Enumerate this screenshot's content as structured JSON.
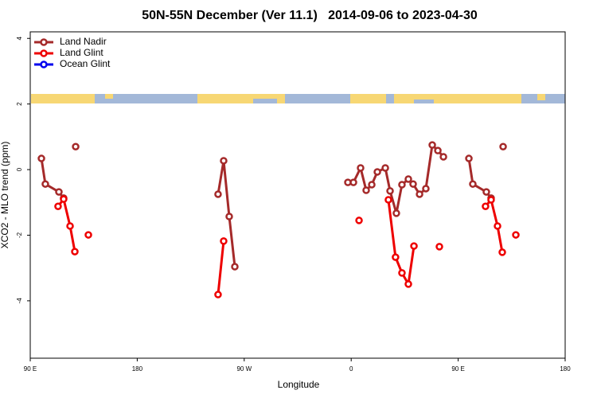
{
  "chart_data": {
    "type": "line",
    "title": "50N-55N December (Ver 11.1)   2014-09-06 to 2023-04-30",
    "xlabel": "Longitude",
    "ylabel": "XCO2 - MLO trend (ppm)",
    "xlim": [
      90,
      540
    ],
    "ylim": [
      -5.75,
      4.2
    ],
    "xticks": [
      {
        "value": 90,
        "label": "90 E"
      },
      {
        "value": 180,
        "label": "180"
      },
      {
        "value": 270,
        "label": "90 W"
      },
      {
        "value": 360,
        "label": "0"
      },
      {
        "value": 450,
        "label": "90 E"
      },
      {
        "value": 540,
        "label": "180"
      }
    ],
    "yticks": [
      -4,
      -2,
      0,
      2,
      4
    ],
    "legend": "upper left",
    "series": [
      {
        "name": "Land Nadir",
        "color": "#a52a2a",
        "x": [
          99.4,
          102.7,
          114.1,
          118.1,
          null,
          128.2,
          null,
          248.0,
          252.7,
          257.4,
          262.1,
          null,
          357.2,
          361.9,
          367.9,
          372.6,
          377.3,
          382.0,
          388.7,
          392.7,
          398.0,
          402.7,
          408.1,
          412.1,
          417.5,
          422.8,
          428.2,
          432.9,
          437.6,
          null,
          459.0,
          462.3,
          473.7,
          477.7,
          null,
          487.8
        ],
        "values": [
          0.34,
          -0.44,
          -0.68,
          -0.87,
          null,
          0.7,
          null,
          -0.75,
          0.27,
          -1.43,
          -2.96,
          null,
          -0.39,
          -0.39,
          0.05,
          -0.63,
          -0.46,
          -0.07,
          0.05,
          -0.65,
          -1.33,
          -0.46,
          -0.29,
          -0.44,
          -0.75,
          -0.58,
          0.75,
          0.58,
          0.39,
          null,
          0.34,
          -0.44,
          -0.68,
          -0.87,
          null,
          0.7
        ]
      },
      {
        "name": "Land Glint",
        "color": "#ee0000",
        "x": [
          113.4,
          118.1,
          123.5,
          127.5,
          null,
          138.9,
          null,
          248.0,
          252.7,
          null,
          366.6,
          null,
          391.3,
          397.3,
          402.7,
          408.1,
          412.8,
          null,
          434.2,
          null,
          473.0,
          477.7,
          483.1,
          487.1,
          null,
          498.5
        ],
        "values": [
          -1.12,
          -0.9,
          -1.72,
          -2.5,
          null,
          -1.99,
          null,
          -3.81,
          -2.18,
          null,
          -1.55,
          null,
          -0.92,
          -2.67,
          -3.15,
          -3.49,
          -2.33,
          null,
          -2.35,
          null,
          -1.12,
          -0.92,
          -1.72,
          -2.52,
          null,
          -1.99
        ]
      },
      {
        "name": "Ocean Glint",
        "color": "#0000ee",
        "x": [],
        "values": []
      }
    ]
  }
}
